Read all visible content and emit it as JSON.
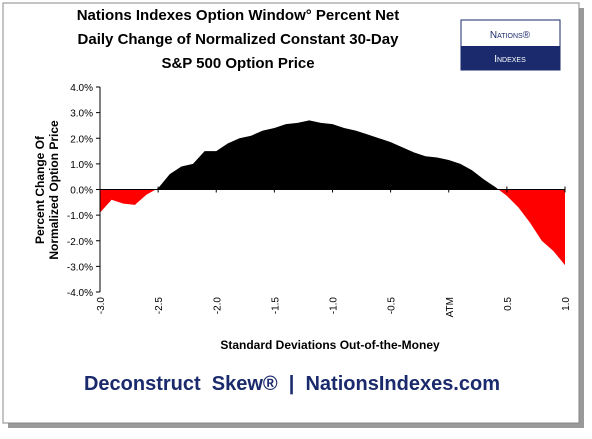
{
  "chart_data": {
    "type": "area",
    "title": [
      "Nations Indexes Option Window° Percent Net",
      "Daily Change of Normalized Constant 30-Day",
      "S&P 500 Option Price"
    ],
    "logo": [
      "Nations®",
      "Indexes"
    ],
    "footer": "Deconstruct  Skew®  |  NationsIndexes.com",
    "xlabel": "Standard Deviations Out-of-the-Money",
    "ylabel": [
      "Percent Change Of",
      "Normalized Option Price"
    ],
    "x": [
      -3.0,
      -2.9,
      -2.8,
      -2.7,
      -2.6,
      -2.5,
      -2.4,
      -2.3,
      -2.2,
      -2.1,
      -2.0,
      -1.9,
      -1.8,
      -1.7,
      -1.6,
      -1.5,
      -1.4,
      -1.3,
      -1.2,
      -1.1,
      -1.0,
      -0.9,
      -0.8,
      -0.7,
      -0.6,
      -0.5,
      -0.4,
      -0.3,
      -0.2,
      -0.1,
      0.0,
      0.1,
      0.2,
      0.3,
      0.4,
      0.5,
      0.6,
      0.7,
      0.8,
      0.9,
      1.0
    ],
    "values": [
      -0.9,
      -0.4,
      -0.55,
      -0.6,
      -0.2,
      0.05,
      0.6,
      0.9,
      1.0,
      1.5,
      1.5,
      1.8,
      2.0,
      2.1,
      2.3,
      2.4,
      2.55,
      2.6,
      2.7,
      2.6,
      2.55,
      2.4,
      2.3,
      2.15,
      2.0,
      1.85,
      1.65,
      1.45,
      1.3,
      1.25,
      1.15,
      1.0,
      0.75,
      0.4,
      0.1,
      -0.25,
      -0.7,
      -1.3,
      -2.0,
      -2.4,
      -2.95
    ],
    "positive_color": "#000000",
    "negative_color": "#ff0000",
    "xlim": [
      -3.0,
      1.0
    ],
    "xticks": [
      {
        "value": -3.0,
        "label": "-3.0"
      },
      {
        "value": -2.5,
        "label": "-2.5"
      },
      {
        "value": -2.0,
        "label": "-2.0"
      },
      {
        "value": -1.5,
        "label": "-1.5"
      },
      {
        "value": -1.0,
        "label": "-1.0"
      },
      {
        "value": -0.5,
        "label": "-0.5"
      },
      {
        "value": 0,
        "label": "ATM"
      },
      {
        "value": 0.5,
        "label": "0.5"
      },
      {
        "value": 1.0,
        "label": "1.0"
      }
    ],
    "ylim": [
      -4.0,
      4.0
    ],
    "yticks": [
      {
        "value": 4.0,
        "label": "4.0%"
      },
      {
        "value": 3.0,
        "label": "3.0%"
      },
      {
        "value": 2.0,
        "label": "2.0%"
      },
      {
        "value": 1.0,
        "label": "1.0%"
      },
      {
        "value": 0.0,
        "label": "0.0%"
      },
      {
        "value": -1.0,
        "label": "-1.0%"
      },
      {
        "value": -2.0,
        "label": "-2.0%"
      },
      {
        "value": -3.0,
        "label": "-3.0%"
      },
      {
        "value": -4.0,
        "label": "-4.0%"
      }
    ]
  }
}
